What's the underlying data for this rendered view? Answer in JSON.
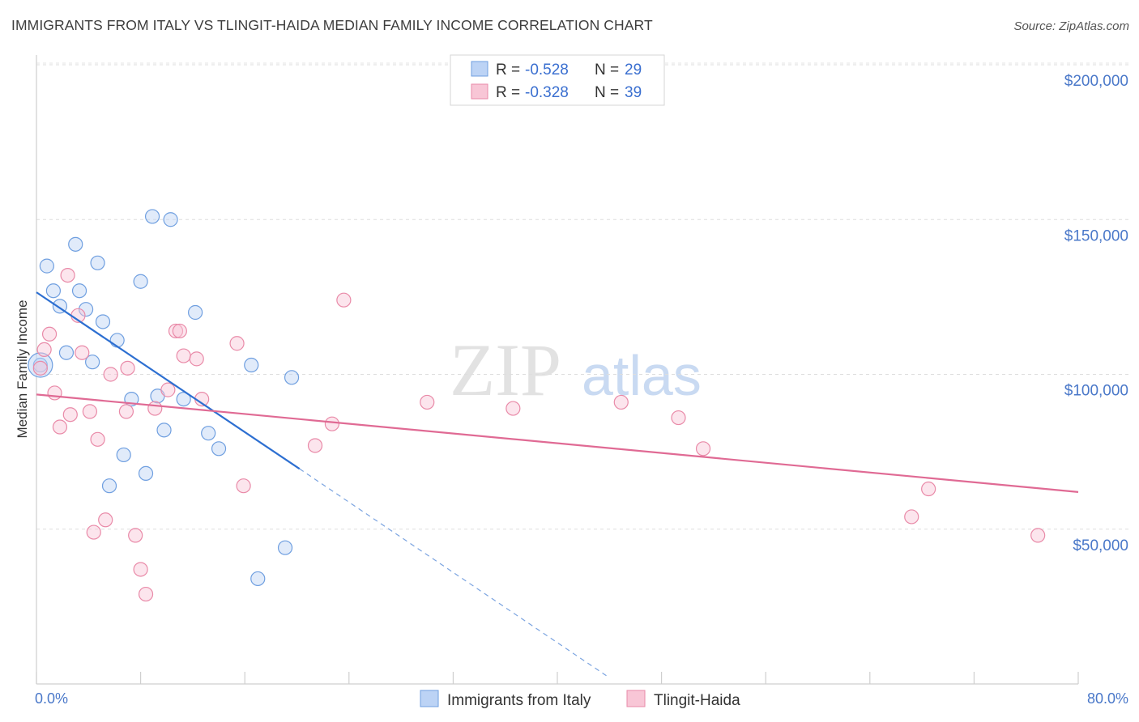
{
  "title": "IMMIGRANTS FROM ITALY VS TLINGIT-HAIDA MEDIAN FAMILY INCOME CORRELATION CHART",
  "source": "Source: ZipAtlas.com",
  "watermark": {
    "zip": "ZIP",
    "atlas": "atlas"
  },
  "colors": {
    "blue": "#6f9fe0",
    "blue_line": "#2d6fd1",
    "pink": "#e98aa8",
    "pink_line": "#e06a94",
    "tick": "#4a78c9"
  },
  "chart_data": {
    "type": "scatter",
    "xlabel": "",
    "ylabel": "Median Family Income",
    "xlim": [
      0,
      80
    ],
    "ylim": [
      0,
      200000
    ],
    "x_tick_labels": {
      "left": "0.0%",
      "right": "80.0%"
    },
    "y_ticks": [
      {
        "value": 50000,
        "label": "$50,000"
      },
      {
        "value": 100000,
        "label": "$100,000"
      },
      {
        "value": 150000,
        "label": "$150,000"
      },
      {
        "value": 200000,
        "label": "$200,000"
      }
    ],
    "legend": {
      "rows": [
        {
          "r_label": "R =",
          "r_value": "-0.528",
          "n_label": "N =",
          "n_value": "29"
        },
        {
          "r_label": "R =",
          "r_value": "-0.328",
          "n_label": "N =",
          "n_value": "39"
        }
      ]
    },
    "series": [
      {
        "name": "Immigrants from Italy",
        "color": "#6f9fe0",
        "points": [
          [
            0.3,
            103000
          ],
          [
            0.8,
            135000
          ],
          [
            1.3,
            127000
          ],
          [
            1.8,
            122000
          ],
          [
            2.3,
            107000
          ],
          [
            3.0,
            142000
          ],
          [
            3.3,
            127000
          ],
          [
            3.8,
            121000
          ],
          [
            4.3,
            104000
          ],
          [
            4.7,
            136000
          ],
          [
            5.1,
            117000
          ],
          [
            5.6,
            64000
          ],
          [
            6.2,
            111000
          ],
          [
            6.7,
            74000
          ],
          [
            7.3,
            92000
          ],
          [
            8.0,
            130000
          ],
          [
            8.4,
            68000
          ],
          [
            8.9,
            151000
          ],
          [
            9.3,
            93000
          ],
          [
            9.8,
            82000
          ],
          [
            10.3,
            150000
          ],
          [
            11.3,
            92000
          ],
          [
            12.2,
            120000
          ],
          [
            13.2,
            81000
          ],
          [
            14.0,
            76000
          ],
          [
            16.5,
            103000
          ],
          [
            17.0,
            34000
          ],
          [
            19.1,
            44000
          ],
          [
            19.6,
            99000
          ]
        ],
        "trend": {
          "x0": 0,
          "y0": 126500,
          "x1": 20.2,
          "y1": 69500
        },
        "trend_dashed": {
          "x0": 20.2,
          "y0": 69500,
          "x1": 44.0,
          "y1": 2000
        }
      },
      {
        "name": "Tlingit-Haida",
        "color": "#e98aa8",
        "points": [
          [
            0.3,
            102000
          ],
          [
            0.6,
            108000
          ],
          [
            1.0,
            113000
          ],
          [
            1.4,
            94000
          ],
          [
            1.8,
            83000
          ],
          [
            2.6,
            87000
          ],
          [
            3.2,
            119000
          ],
          [
            3.5,
            107000
          ],
          [
            4.1,
            88000
          ],
          [
            4.4,
            49000
          ],
          [
            4.7,
            79000
          ],
          [
            5.3,
            53000
          ],
          [
            5.7,
            100000
          ],
          [
            6.9,
            88000
          ],
          [
            7.0,
            102000
          ],
          [
            7.6,
            48000
          ],
          [
            8.0,
            37000
          ],
          [
            8.4,
            29000
          ],
          [
            9.1,
            89000
          ],
          [
            10.1,
            95000
          ],
          [
            10.7,
            114000
          ],
          [
            11.0,
            114000
          ],
          [
            11.3,
            106000
          ],
          [
            12.3,
            105000
          ],
          [
            12.7,
            92000
          ],
          [
            15.4,
            110000
          ],
          [
            15.9,
            64000
          ],
          [
            21.4,
            77000
          ],
          [
            22.7,
            84000
          ],
          [
            23.6,
            124000
          ],
          [
            30.0,
            91000
          ],
          [
            36.6,
            89000
          ],
          [
            44.9,
            91000
          ],
          [
            49.3,
            86000
          ],
          [
            51.2,
            76000
          ],
          [
            67.2,
            54000
          ],
          [
            68.5,
            63000
          ],
          [
            76.9,
            48000
          ],
          [
            2.4,
            132000
          ]
        ],
        "trend": {
          "x0": 0,
          "y0": 93500,
          "x1": 80,
          "y1": 62000
        }
      }
    ]
  }
}
